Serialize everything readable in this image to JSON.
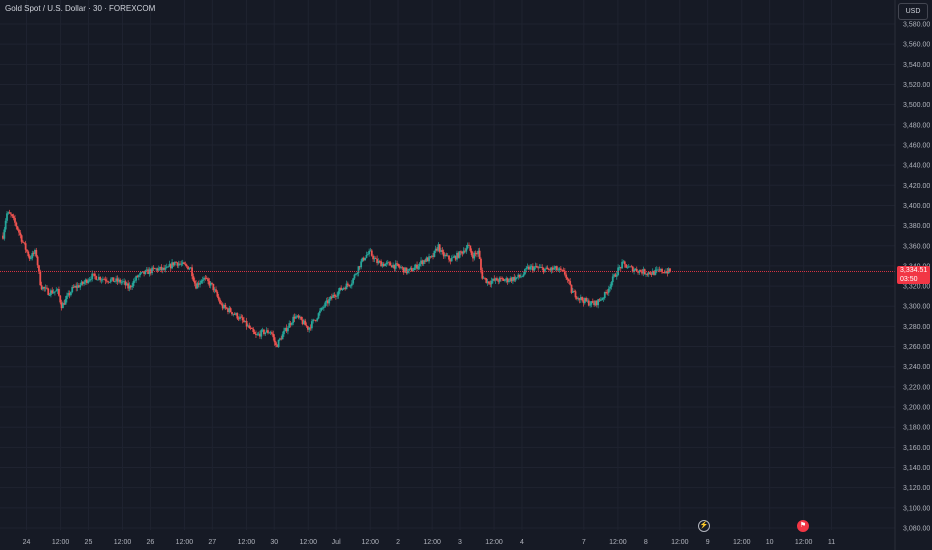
{
  "header": {
    "symbol_title": "Gold Spot / U.S. Dollar · 30 · FOREXCOM"
  },
  "price_scale": {
    "currency": "USD"
  },
  "last_price": {
    "value": "3,334.51",
    "countdown": "03:50",
    "color": "#f23645"
  },
  "colors": {
    "background": "#161a25",
    "up": "#26a69a",
    "down": "#ef5350",
    "grid": "#1f2330",
    "axis_text": "#b2b5be"
  },
  "events": {
    "flash_icon": "lightning-icon",
    "flag_icon": "flag-icon"
  },
  "chart_data": {
    "type": "candlestick",
    "title": "Gold Spot / U.S. Dollar · 30 · FOREXCOM",
    "y_unit": "USD",
    "ylim": [
      3080,
      3580
    ],
    "y_ticks": [
      3080,
      3100,
      3120,
      3140,
      3160,
      3180,
      3200,
      3220,
      3240,
      3260,
      3280,
      3300,
      3320,
      3340,
      3360,
      3380,
      3400,
      3420,
      3440,
      3460,
      3480,
      3500,
      3520,
      3540,
      3560,
      3580
    ],
    "y_tick_labels": [
      "3,080.00",
      "3,100.00",
      "3,120.00",
      "3,140.00",
      "3,160.00",
      "3,180.00",
      "3,200.00",
      "3,220.00",
      "3,240.00",
      "3,260.00",
      "3,280.00",
      "3,300.00",
      "3,320.00",
      "3,340.00",
      "3,360.00",
      "3,380.00",
      "3,400.00",
      "3,420.00",
      "3,440.00",
      "3,460.00",
      "3,480.00",
      "3,500.00",
      "3,520.00",
      "3,540.00",
      "3,560.00",
      "3,580.00"
    ],
    "x_ticks": [
      {
        "label": "24",
        "t": 0.45
      },
      {
        "label": "12:00",
        "t": 1.0
      },
      {
        "label": "25",
        "t": 1.45
      },
      {
        "label": "12:00",
        "t": 2.0
      },
      {
        "label": "26",
        "t": 2.45
      },
      {
        "label": "12:00",
        "t": 3.0
      },
      {
        "label": "27",
        "t": 3.45
      },
      {
        "label": "12:00",
        "t": 4.0
      },
      {
        "label": "30",
        "t": 4.45
      },
      {
        "label": "12:00",
        "t": 5.0
      },
      {
        "label": "Jul",
        "t": 5.45
      },
      {
        "label": "12:00",
        "t": 6.0
      },
      {
        "label": "2",
        "t": 6.45
      },
      {
        "label": "12:00",
        "t": 7.0
      },
      {
        "label": "3",
        "t": 7.45
      },
      {
        "label": "12:00",
        "t": 8.0
      },
      {
        "label": "4",
        "t": 8.45
      },
      {
        "label": "7",
        "t": 9.45
      },
      {
        "label": "12:00",
        "t": 10.0
      },
      {
        "label": "8",
        "t": 10.45
      },
      {
        "label": "12:00",
        "t": 11.0
      },
      {
        "label": "9",
        "t": 11.45
      },
      {
        "label": "12:00",
        "t": 12.0
      },
      {
        "label": "10",
        "t": 12.45
      },
      {
        "label": "12:00",
        "t": 13.0
      },
      {
        "label": "11",
        "t": 13.45
      }
    ],
    "x_range": [
      0.07,
      14.2
    ],
    "last_price": 3334.51,
    "data_end_t": 10.85,
    "path": [
      {
        "t": 0.07,
        "p": 3370
      },
      {
        "t": 0.13,
        "p": 3392
      },
      {
        "t": 0.2,
        "p": 3390
      },
      {
        "t": 0.3,
        "p": 3378
      },
      {
        "t": 0.4,
        "p": 3362
      },
      {
        "t": 0.5,
        "p": 3348
      },
      {
        "t": 0.6,
        "p": 3354
      },
      {
        "t": 0.68,
        "p": 3320
      },
      {
        "t": 0.8,
        "p": 3314
      },
      {
        "t": 0.95,
        "p": 3315
      },
      {
        "t": 1.02,
        "p": 3300
      },
      {
        "t": 1.1,
        "p": 3308
      },
      {
        "t": 1.2,
        "p": 3318
      },
      {
        "t": 1.35,
        "p": 3322
      },
      {
        "t": 1.5,
        "p": 3330
      },
      {
        "t": 1.65,
        "p": 3328
      },
      {
        "t": 1.8,
        "p": 3326
      },
      {
        "t": 2.0,
        "p": 3324
      },
      {
        "t": 2.1,
        "p": 3318
      },
      {
        "t": 2.25,
        "p": 3330
      },
      {
        "t": 2.4,
        "p": 3334
      },
      {
        "t": 2.55,
        "p": 3337
      },
      {
        "t": 2.7,
        "p": 3336
      },
      {
        "t": 2.85,
        "p": 3344
      },
      {
        "t": 3.0,
        "p": 3340
      },
      {
        "t": 3.1,
        "p": 3338
      },
      {
        "t": 3.18,
        "p": 3320
      },
      {
        "t": 3.3,
        "p": 3328
      },
      {
        "t": 3.45,
        "p": 3320
      },
      {
        "t": 3.6,
        "p": 3300
      },
      {
        "t": 3.75,
        "p": 3295
      },
      {
        "t": 3.9,
        "p": 3288
      },
      {
        "t": 4.05,
        "p": 3278
      },
      {
        "t": 4.15,
        "p": 3270
      },
      {
        "t": 4.25,
        "p": 3274
      },
      {
        "t": 4.4,
        "p": 3275
      },
      {
        "t": 4.48,
        "p": 3260
      },
      {
        "t": 4.55,
        "p": 3268
      },
      {
        "t": 4.65,
        "p": 3278
      },
      {
        "t": 4.78,
        "p": 3290
      },
      {
        "t": 4.88,
        "p": 3286
      },
      {
        "t": 5.0,
        "p": 3278
      },
      {
        "t": 5.12,
        "p": 3288
      },
      {
        "t": 5.25,
        "p": 3300
      },
      {
        "t": 5.4,
        "p": 3310
      },
      {
        "t": 5.55,
        "p": 3318
      },
      {
        "t": 5.7,
        "p": 3324
      },
      {
        "t": 5.82,
        "p": 3340
      },
      {
        "t": 5.92,
        "p": 3350
      },
      {
        "t": 6.0,
        "p": 3353
      },
      {
        "t": 6.1,
        "p": 3344
      },
      {
        "t": 6.2,
        "p": 3342
      },
      {
        "t": 6.35,
        "p": 3341
      },
      {
        "t": 6.5,
        "p": 3338
      },
      {
        "t": 6.6,
        "p": 3334
      },
      {
        "t": 6.72,
        "p": 3338
      },
      {
        "t": 6.85,
        "p": 3345
      },
      {
        "t": 7.0,
        "p": 3348
      },
      {
        "t": 7.1,
        "p": 3360
      },
      {
        "t": 7.15,
        "p": 3352
      },
      {
        "t": 7.3,
        "p": 3346
      },
      {
        "t": 7.45,
        "p": 3352
      },
      {
        "t": 7.58,
        "p": 3360
      },
      {
        "t": 7.65,
        "p": 3350
      },
      {
        "t": 7.75,
        "p": 3354
      },
      {
        "t": 7.8,
        "p": 3330
      },
      {
        "t": 7.9,
        "p": 3324
      },
      {
        "t": 8.05,
        "p": 3326
      },
      {
        "t": 8.2,
        "p": 3326
      },
      {
        "t": 8.35,
        "p": 3328
      },
      {
        "t": 8.45,
        "p": 3330
      },
      {
        "t": 8.55,
        "p": 3338
      },
      {
        "t": 8.7,
        "p": 3338
      },
      {
        "t": 8.85,
        "p": 3336
      },
      {
        "t": 9.0,
        "p": 3337
      },
      {
        "t": 9.15,
        "p": 3332
      },
      {
        "t": 9.25,
        "p": 3315
      },
      {
        "t": 9.38,
        "p": 3308
      },
      {
        "t": 9.5,
        "p": 3304
      },
      {
        "t": 9.62,
        "p": 3302
      },
      {
        "t": 9.7,
        "p": 3306
      },
      {
        "t": 9.8,
        "p": 3312
      },
      {
        "t": 9.9,
        "p": 3325
      },
      {
        "t": 10.0,
        "p": 3336
      },
      {
        "t": 10.08,
        "p": 3342
      },
      {
        "t": 10.18,
        "p": 3338
      },
      {
        "t": 10.3,
        "p": 3336
      },
      {
        "t": 10.42,
        "p": 3334
      },
      {
        "t": 10.55,
        "p": 3333
      },
      {
        "t": 10.7,
        "p": 3335
      },
      {
        "t": 10.85,
        "p": 3334.5
      }
    ]
  }
}
